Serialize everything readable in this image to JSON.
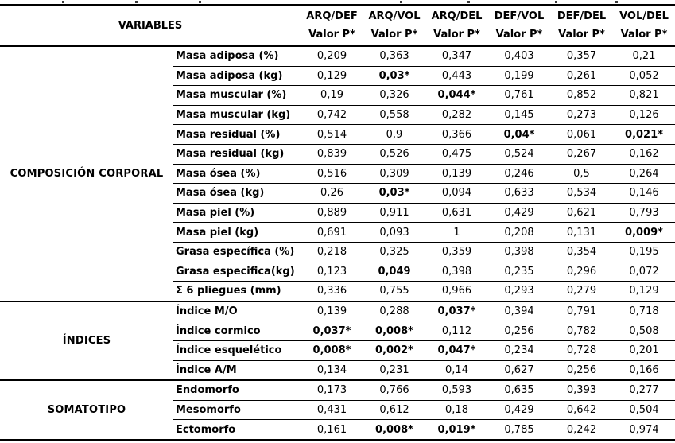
{
  "colors": {
    "text": "#000000",
    "background": "#ffffff",
    "border": "#000000"
  },
  "table": {
    "header": {
      "variables_label": "VARIABLES",
      "value_sub_label": "Valor P*",
      "columns": [
        "ARQ/DEF",
        "ARQ/VOL",
        "ARQ/DEL",
        "DEF/VOL",
        "DEF/DEL",
        "VOL/DEL"
      ]
    },
    "groups": [
      {
        "name": "COMPOSICIÓN CORPORAL",
        "rows": [
          {
            "label": "Masa adiposa (%)",
            "values": [
              "0,209",
              "0,363",
              "0,347",
              "0,403",
              "0,357",
              "0,21"
            ],
            "bold": []
          },
          {
            "label": "Masa adiposa (kg)",
            "values": [
              "0,129",
              "0,03*",
              "0,443",
              "0,199",
              "0,261",
              "0,052"
            ],
            "bold": [
              1
            ]
          },
          {
            "label": "Masa muscular (%)",
            "values": [
              "0,19",
              "0,326",
              "0,044*",
              "0,761",
              "0,852",
              "0,821"
            ],
            "bold": [
              2
            ]
          },
          {
            "label": "Masa muscular (kg)",
            "values": [
              "0,742",
              "0,558",
              "0,282",
              "0,145",
              "0,273",
              "0,126"
            ],
            "bold": []
          },
          {
            "label": "Masa residual (%)",
            "values": [
              "0,514",
              "0,9",
              "0,366",
              "0,04*",
              "0,061",
              "0,021*"
            ],
            "bold": [
              3,
              5
            ]
          },
          {
            "label": "Masa residual (kg)",
            "values": [
              "0,839",
              "0,526",
              "0,475",
              "0,524",
              "0,267",
              "0,162"
            ],
            "bold": []
          },
          {
            "label": "Masa ósea (%)",
            "values": [
              "0,516",
              "0,309",
              "0,139",
              "0,246",
              "0,5",
              "0,264"
            ],
            "bold": []
          },
          {
            "label": "Masa ósea (kg)",
            "values": [
              "0,26",
              "0,03*",
              "0,094",
              "0,633",
              "0,534",
              "0,146"
            ],
            "bold": [
              1
            ]
          },
          {
            "label": "Masa piel (%)",
            "values": [
              "0,889",
              "0,911",
              "0,631",
              "0,429",
              "0,621",
              "0,793"
            ],
            "bold": []
          },
          {
            "label": "Masa piel (kg)",
            "values": [
              "0,691",
              "0,093",
              "1",
              "0,208",
              "0,131",
              "0,009*"
            ],
            "bold": [
              5
            ]
          },
          {
            "label": "Grasa específica (%)",
            "values": [
              "0,218",
              "0,325",
              "0,359",
              "0,398",
              "0,354",
              "0,195"
            ],
            "bold": []
          },
          {
            "label": "Grasa especifica(kg)",
            "values": [
              "0,123",
              "0,049",
              "0,398",
              "0,235",
              "0,296",
              "0,072"
            ],
            "bold": [
              1
            ]
          },
          {
            "label": "Σ 6 pliegues (mm)",
            "values": [
              "0,336",
              "0,755",
              "0,966",
              "0,293",
              "0,279",
              "0,129"
            ],
            "bold": []
          }
        ]
      },
      {
        "name": "ÍNDICES",
        "rows": [
          {
            "label": "Índice M/O",
            "values": [
              "0,139",
              "0,288",
              "0,037*",
              "0,394",
              "0,791",
              "0,718"
            ],
            "bold": [
              2
            ]
          },
          {
            "label": "Índice cormico",
            "values": [
              "0,037*",
              "0,008*",
              "0,112",
              "0,256",
              "0,782",
              "0,508"
            ],
            "bold": [
              0,
              1
            ]
          },
          {
            "label": "Índice esquelético",
            "values": [
              "0,008*",
              "0,002*",
              "0,047*",
              "0,234",
              "0,728",
              "0,201"
            ],
            "bold": [
              0,
              1,
              2
            ]
          },
          {
            "label": "Índice A/M",
            "values": [
              "0,134",
              "0,231",
              "0,14",
              "0,627",
              "0,256",
              "0,166"
            ],
            "bold": []
          }
        ]
      },
      {
        "name": "SOMATOTIPO",
        "rows": [
          {
            "label": "Endomorfo",
            "values": [
              "0,173",
              "0,766",
              "0,593",
              "0,635",
              "0,393",
              "0,277"
            ],
            "bold": []
          },
          {
            "label": "Mesomorfo",
            "values": [
              "0,431",
              "0,612",
              "0,18",
              "0,429",
              "0,642",
              "0,504"
            ],
            "bold": []
          },
          {
            "label": "Ectomorfo",
            "values": [
              "0,161",
              "0,008*",
              "0,019*",
              "0,785",
              "0,242",
              "0,974"
            ],
            "bold": [
              1,
              2
            ]
          }
        ]
      }
    ]
  }
}
